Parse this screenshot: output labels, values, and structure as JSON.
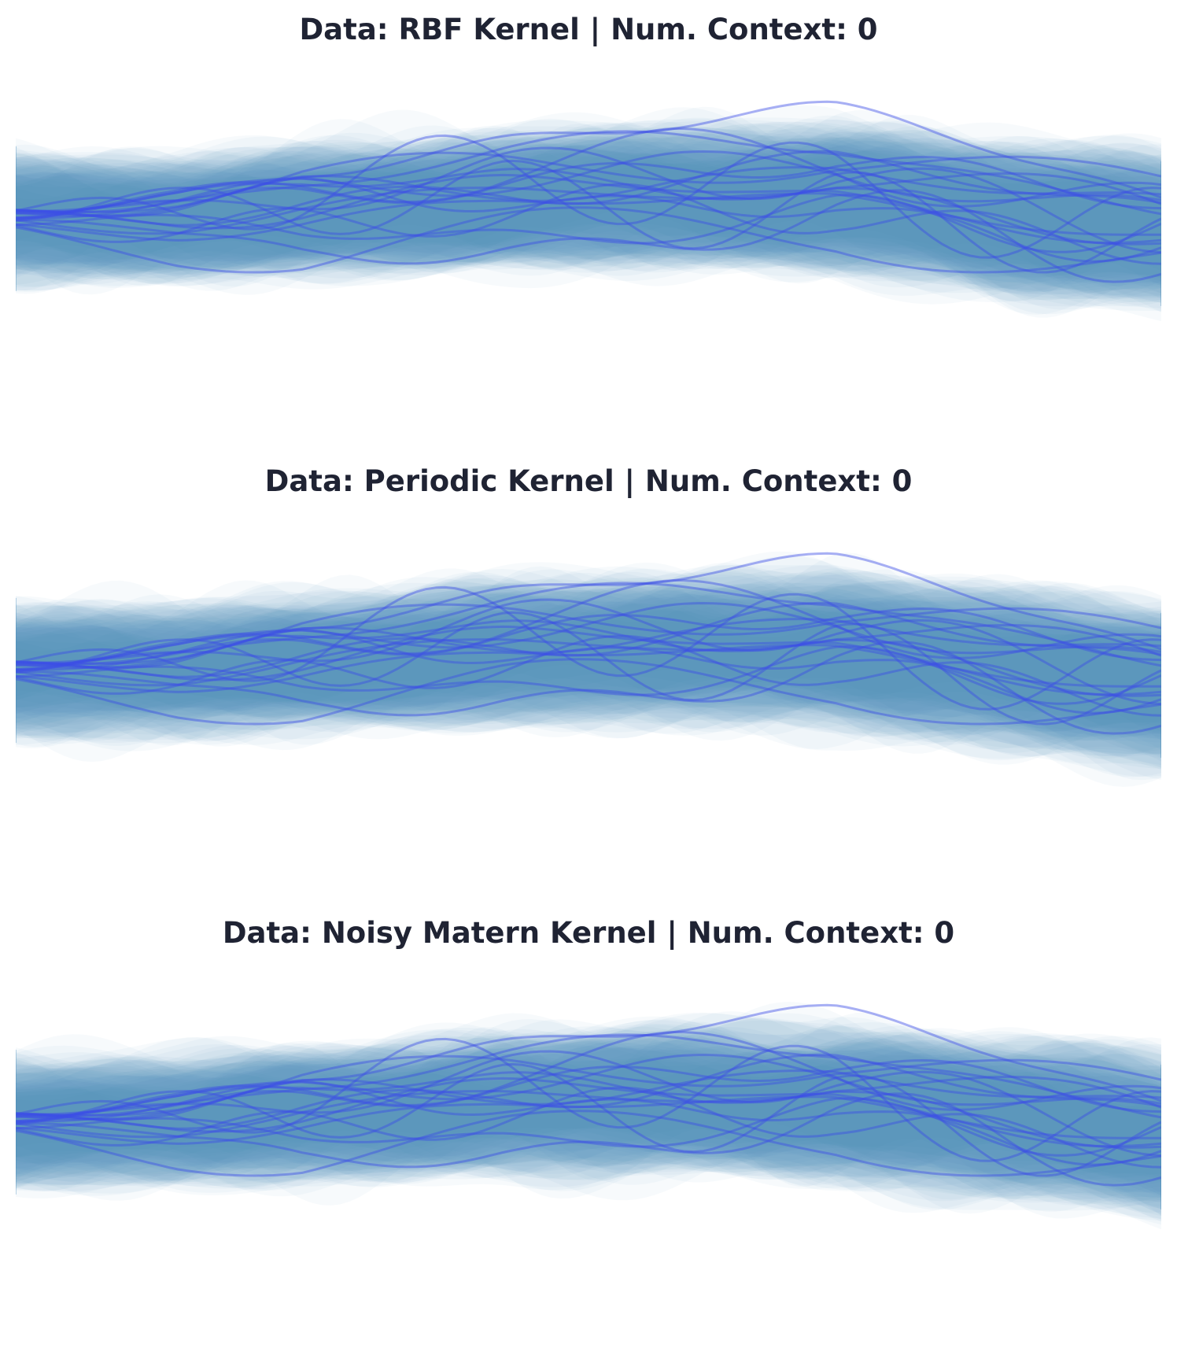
{
  "chart_data": [
    {
      "type": "line",
      "title": "Data: RBF Kernel | Num. Context: 0",
      "xlim": [
        0,
        1
      ],
      "ylim": [
        -3,
        3
      ],
      "axes_visible": false,
      "grid": false,
      "colors": {
        "samples": "#3b4ee6",
        "band": "#3f88b8"
      },
      "num_samples": 20,
      "band_mean": [
        0.55,
        0.55,
        0.7,
        0.85,
        0.9,
        0.9,
        0.6,
        0.3
      ],
      "band_sd": [
        1.0,
        1.0,
        1.05,
        1.1,
        1.15,
        1.2,
        1.25,
        1.25
      ],
      "sample_seed": 11,
      "band_seed": 101
    },
    {
      "type": "line",
      "title": "Data: Periodic Kernel | Num. Context: 0",
      "xlim": [
        0,
        1
      ],
      "ylim": [
        -3,
        3
      ],
      "axes_visible": false,
      "grid": false,
      "colors": {
        "samples": "#3b4ee6",
        "band": "#3f88b8"
      },
      "num_samples": 20,
      "band_mean": [
        0.55,
        0.55,
        0.7,
        0.85,
        0.9,
        0.9,
        0.6,
        0.3
      ],
      "band_sd": [
        1.0,
        1.0,
        1.05,
        1.1,
        1.15,
        1.2,
        1.25,
        1.25
      ],
      "sample_seed": 11,
      "band_seed": 202
    },
    {
      "type": "line",
      "title": "Data: Noisy Matern Kernel | Num. Context: 0",
      "xlim": [
        0,
        1
      ],
      "ylim": [
        -3,
        3
      ],
      "axes_visible": false,
      "grid": false,
      "colors": {
        "samples": "#3b4ee6",
        "band": "#3f88b8"
      },
      "num_samples": 20,
      "band_mean": [
        0.55,
        0.55,
        0.7,
        0.85,
        0.9,
        0.9,
        0.6,
        0.3
      ],
      "band_sd": [
        1.0,
        1.0,
        1.05,
        1.1,
        1.15,
        1.2,
        1.25,
        1.25
      ],
      "sample_seed": 11,
      "band_seed": 303
    }
  ]
}
